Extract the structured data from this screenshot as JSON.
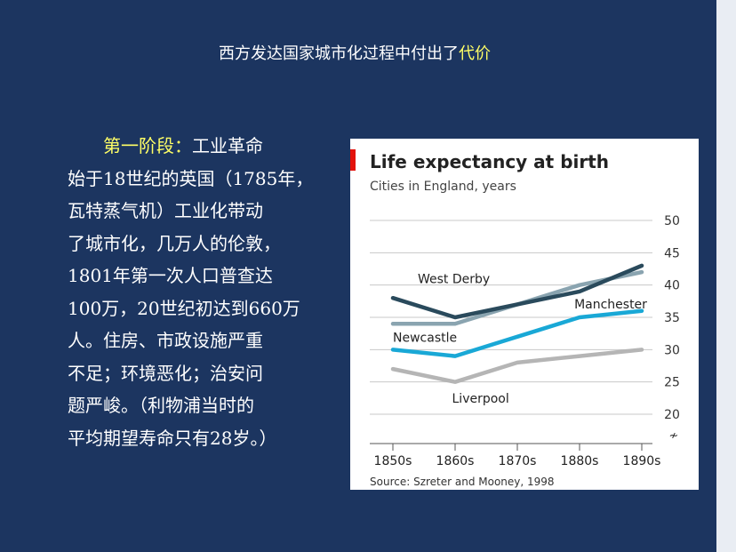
{
  "slide": {
    "title_main": "西方发达国家城市化过程中付出了",
    "title_highlight": "代价",
    "stage_label": "第一阶段：",
    "body_lines": [
      "工业革命",
      "始于18世纪的英国（1785年，",
      "瓦特蒸气机）工业化带动",
      "了城市化，几万人的伦敦，",
      "1801年第一次人口普查达",
      "100万，20世纪初达到660万",
      "人。住房、市政设施严重",
      "不足；环境恶化；治安问",
      "题严峻。（利物浦当时的",
      "平均期望寿命只有28岁。）"
    ]
  },
  "colors": {
    "background": "#1c3560",
    "highlight": "#ffff66",
    "accent_bar": "#e3120b"
  },
  "chart_data": {
    "type": "line",
    "title": "Life expectancy at birth",
    "subtitle": "Cities in England, years",
    "source": "Source: Szreter and Mooney, 1998",
    "categories": [
      "1850s",
      "1860s",
      "1870s",
      "1880s",
      "1890s"
    ],
    "ylim": [
      20,
      50
    ],
    "yticks": [
      "50",
      "45",
      "40",
      "35",
      "30",
      "25",
      "20"
    ],
    "axis_break_symbol": "≁",
    "grid": true,
    "series": [
      {
        "name": "West Derby",
        "values": [
          38,
          35,
          37,
          39,
          43
        ],
        "color": "#2a4a5c"
      },
      {
        "name": "Newcastle",
        "values": [
          34,
          34,
          37,
          40,
          42
        ],
        "color": "#8aa4b0"
      },
      {
        "name": "Manchester",
        "values": [
          30,
          29,
          32,
          35,
          36
        ],
        "color": "#19a8d6"
      },
      {
        "name": "Liverpool",
        "values": [
          27,
          25,
          28,
          29,
          30
        ],
        "color": "#b5b5b5"
      }
    ]
  }
}
